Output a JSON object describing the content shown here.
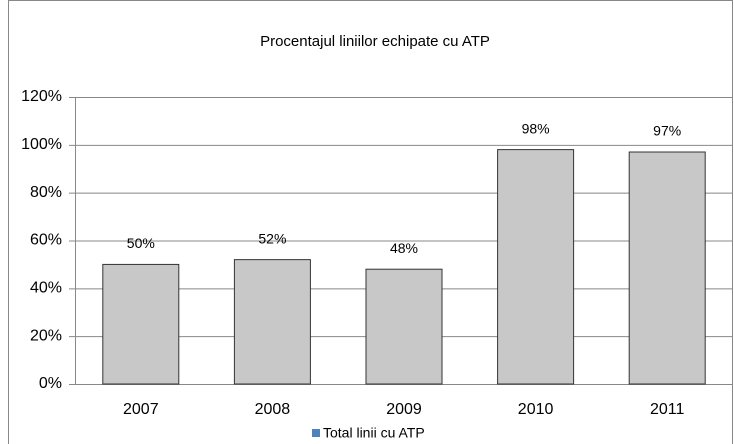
{
  "chart_data": {
    "type": "bar",
    "title": "Procentajul liniilor echipate cu ATP",
    "categories": [
      "2007",
      "2008",
      "2009",
      "2010",
      "2011"
    ],
    "series": [
      {
        "name": "Total linii cu ATP",
        "color": "#c8c8c8",
        "legend_color": "#4f81bd",
        "values": [
          50,
          52,
          48,
          98,
          97
        ],
        "value_labels": [
          "50%",
          "52%",
          "48%",
          "98%",
          "97%"
        ]
      }
    ],
    "ylim": [
      0,
      120
    ],
    "yticks": [
      {
        "value": 0,
        "label": "0%"
      },
      {
        "value": 20,
        "label": "20%"
      },
      {
        "value": 40,
        "label": "40%"
      },
      {
        "value": 60,
        "label": "60%"
      },
      {
        "value": 80,
        "label": "80%"
      },
      {
        "value": 100,
        "label": "100%"
      },
      {
        "value": 120,
        "label": "120%"
      }
    ],
    "grid": true,
    "legend": "bottom"
  }
}
